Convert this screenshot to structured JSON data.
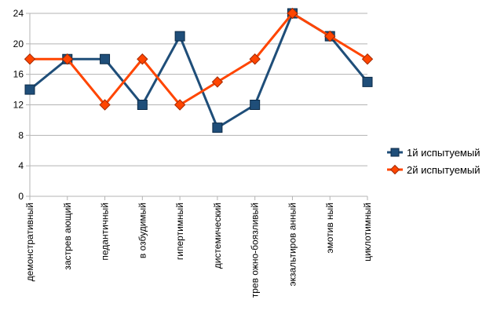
{
  "chart_data": {
    "type": "line",
    "categories": [
      "демонстративный",
      "застревающий",
      "педантичный",
      "возбудимый",
      "гипертимный",
      "дистемический",
      "тревожно-боязливый",
      "экзальтированный",
      "эмотивный",
      "циклотимный"
    ],
    "category_labels_as_shown": [
      "демонстративный",
      "застрев ающий",
      "педантичный",
      "в озбудимый",
      "гипертимный",
      "дистемический",
      "трев ожно-боязливый",
      "экзальтиров анный",
      "эмотив ный",
      "циклотимный"
    ],
    "series": [
      {
        "name": "1й испытуемый",
        "values": [
          14,
          18,
          18,
          12,
          21,
          9,
          12,
          24,
          21,
          15
        ],
        "color": "#1f4e79",
        "marker": "square"
      },
      {
        "name": "2й испытуемый",
        "values": [
          18,
          18,
          12,
          18,
          12,
          15,
          18,
          24,
          21,
          18
        ],
        "color": "#ff4500",
        "marker": "diamond"
      }
    ],
    "ylim": [
      0,
      24
    ],
    "yticks": [
      0,
      4,
      8,
      12,
      16,
      20,
      24
    ],
    "grid": true,
    "legend_position": "right",
    "title": "",
    "xlabel": "",
    "ylabel": ""
  }
}
